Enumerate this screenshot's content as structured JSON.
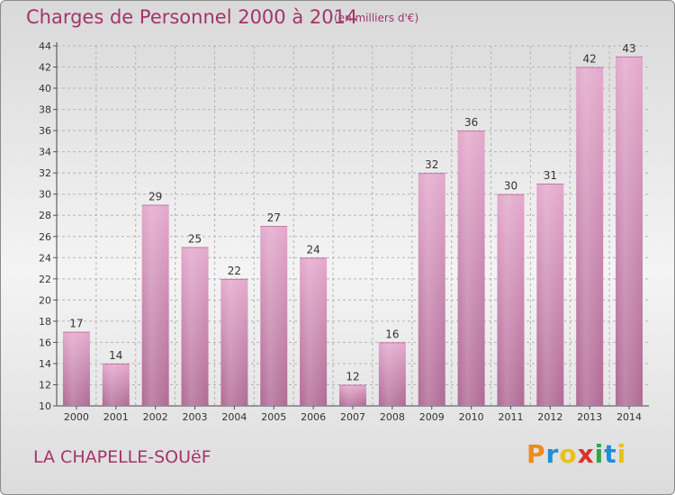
{
  "header": {
    "title": "Charges de Personnel 2000 à 2014",
    "subtitle": "(en milliers d'€)"
  },
  "footer": {
    "town": "LA CHAPELLE-SOUëF",
    "logo_text": "Proxiti",
    "logo_colors": [
      "#f08a1c",
      "#1e8fd6",
      "#e8c21a",
      "#d9342b",
      "#2aa84a",
      "#1e8fd6",
      "#e8c21a"
    ]
  },
  "colors": {
    "bar": "#d58fb8",
    "bar_dark": "#b86e9a",
    "title": "#a2356a"
  },
  "chart_data": {
    "type": "bar",
    "title": "Charges de Personnel 2000 à 2014",
    "subtitle": "(en milliers d'€)",
    "categories": [
      "2000",
      "2001",
      "2002",
      "2003",
      "2004",
      "2005",
      "2006",
      "2007",
      "2008",
      "2009",
      "2010",
      "2011",
      "2012",
      "2013",
      "2014"
    ],
    "values": [
      17,
      14,
      29,
      25,
      22,
      27,
      24,
      12,
      16,
      32,
      36,
      30,
      31,
      42,
      43
    ],
    "ylim": [
      10,
      44
    ],
    "yticks": [
      10,
      12,
      14,
      16,
      18,
      20,
      22,
      24,
      26,
      28,
      30,
      32,
      34,
      36,
      38,
      40,
      42,
      44
    ],
    "grid": true,
    "legend": "none"
  }
}
